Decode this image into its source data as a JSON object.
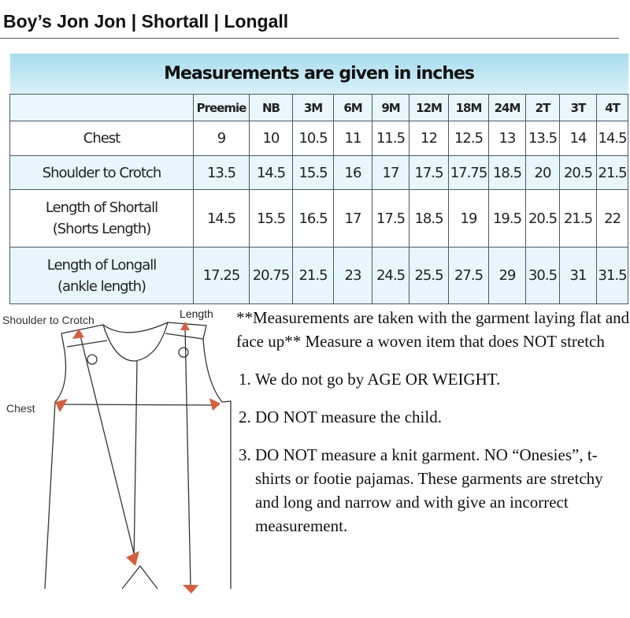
{
  "page_title": "Boy’s Jon Jon | Shortall | Longall",
  "table": {
    "caption": "Measurements are given in inches",
    "sizes": [
      "Preemie",
      "NB",
      "3M",
      "6M",
      "9M",
      "12M",
      "18M",
      "24M",
      "2T",
      "3T",
      "4T"
    ],
    "rows": [
      {
        "label": "Chest",
        "sub": "",
        "values": [
          "9",
          "10",
          "10.5",
          "11",
          "11.5",
          "12",
          "12.5",
          "13",
          "13.5",
          "14",
          "14.5"
        ]
      },
      {
        "label": "Shoulder to Crotch",
        "sub": "",
        "values": [
          "13.5",
          "14.5",
          "15.5",
          "16",
          "17",
          "17.5",
          "17.75",
          "18.5",
          "20",
          "20.5",
          "21.5"
        ]
      },
      {
        "label": "Length of Shortall",
        "sub": "(Shorts Length)",
        "values": [
          "14.5",
          "15.5",
          "16.5",
          "17",
          "17.5",
          "18.5",
          "19",
          "19.5",
          "20.5",
          "21.5",
          "22"
        ]
      },
      {
        "label": "Length of Longall",
        "sub": "(ankle length)",
        "values": [
          "17.25",
          "20.75",
          "21.5",
          "23",
          "24.5",
          "25.5",
          "27.5",
          "29",
          "30.5",
          "31",
          "31.5"
        ]
      }
    ]
  },
  "diagram": {
    "label_shoulder": "Shoulder to Crotch",
    "label_length": "Length",
    "label_chest": "Chest",
    "arrow_color": "#d2603f"
  },
  "notes": {
    "intro": "**Measurements are taken with the garment laying flat and face up** Measure a woven item that does NOT stretch",
    "items": [
      "We do not go by AGE OR WEIGHT.",
      "DO NOT measure the child.",
      "DO NOT measure a knit garment. NO “Onesies”, t-shirts or footie pajamas. These garments are stretchy and long and narrow and with give an incorrect measurement."
    ]
  }
}
